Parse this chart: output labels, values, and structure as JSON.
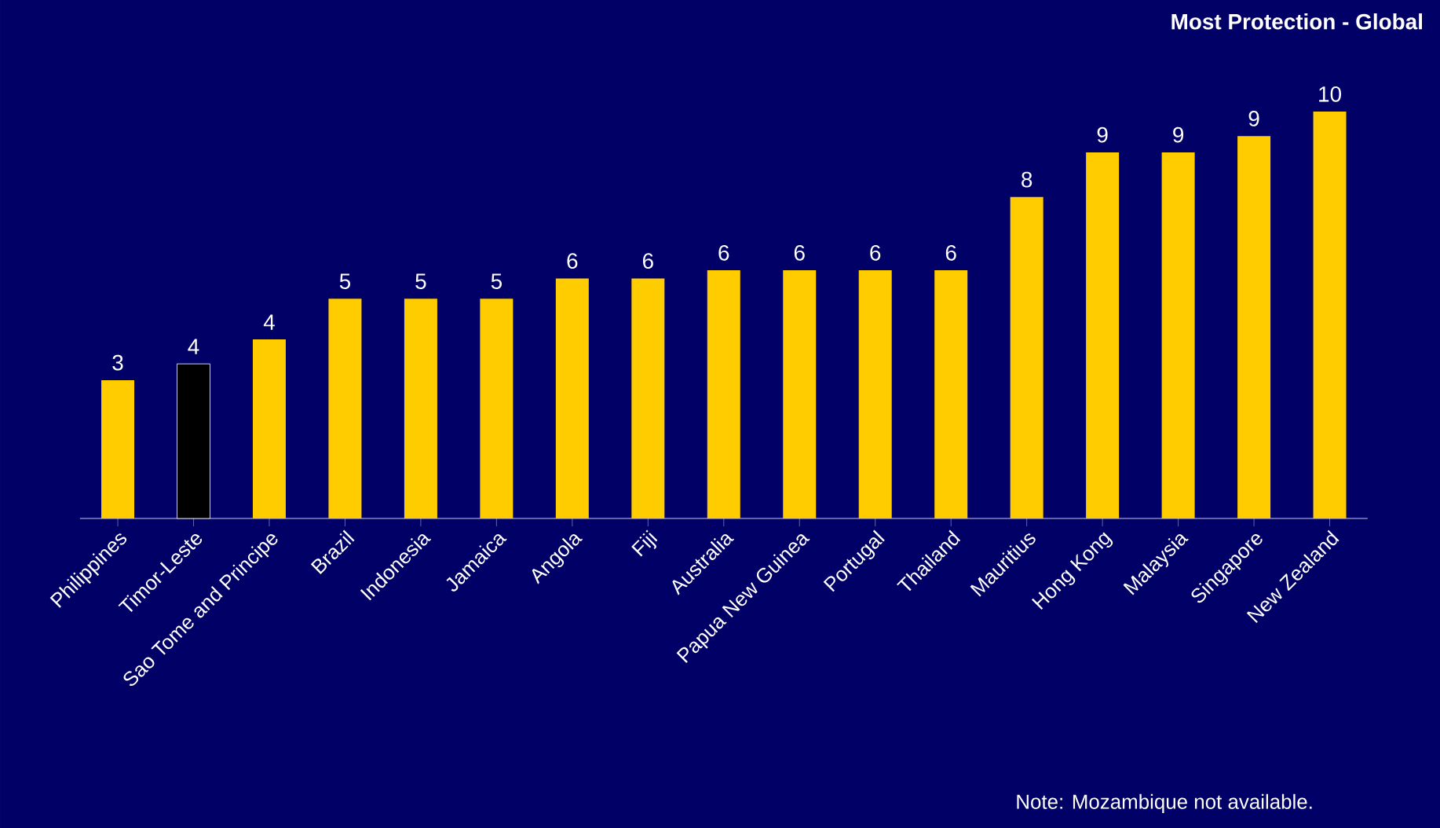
{
  "chart_data": {
    "type": "bar",
    "title": "Most  Protection - Global",
    "categories": [
      "Philippines",
      "Timor-Leste",
      "Sao Tome and Principe",
      "Brazil",
      "Indonesia",
      "Jamaica",
      "Angola",
      "Fiji",
      "Australia",
      "Papua New Guinea",
      "Portugal",
      "Thailand",
      "Mauritius",
      "Hong Kong",
      "Malaysia",
      "Singapore",
      "New Zealand"
    ],
    "values": [
      3.4,
      3.8,
      4.4,
      5.4,
      5.4,
      5.4,
      5.9,
      5.9,
      6.1,
      6.1,
      6.1,
      6.1,
      7.9,
      9.0,
      9.0,
      9.4,
      10
    ],
    "value_labels": [
      "3",
      "4",
      "4",
      "5",
      "5",
      "5",
      "6",
      "6",
      "6",
      "6",
      "6",
      "6",
      "8",
      "9",
      "9",
      "9",
      "10"
    ],
    "colors": [
      "#ffcc00",
      "#000000",
      "#ffcc00",
      "#ffcc00",
      "#ffcc00",
      "#ffcc00",
      "#ffcc00",
      "#ffcc00",
      "#ffcc00",
      "#ffcc00",
      "#ffcc00",
      "#ffcc00",
      "#ffcc00",
      "#ffcc00",
      "#ffcc00",
      "#ffcc00",
      "#ffcc00"
    ],
    "annotations": [
      "Note: Mozambique not available."
    ]
  }
}
